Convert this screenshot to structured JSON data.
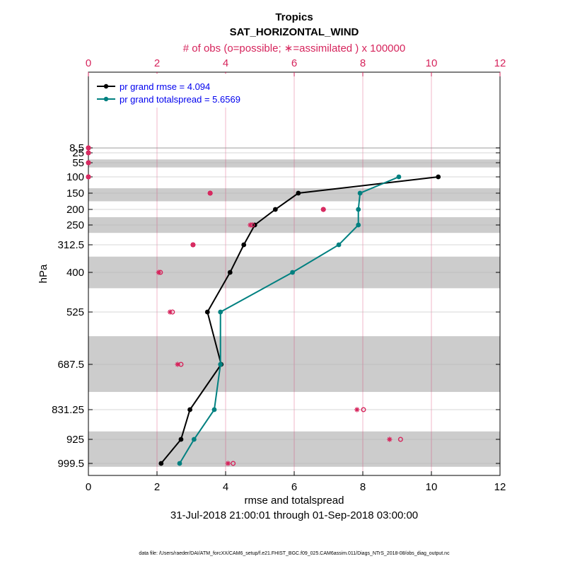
{
  "colors": {
    "rmse": "#000000",
    "spread": "#008080",
    "obs": "#d6245c",
    "band": "#cccccc",
    "grid_v": "#d6245c"
  },
  "chart_data": {
    "type": "line",
    "title": "Tropics",
    "subtitle": "SAT_HORIZONTAL_WIND",
    "top_axis_label": "# of obs (o=possible; ∗=assimilated ) x 100000",
    "xlabel": "rmse and totalspread",
    "ylabel": "hPa",
    "date_range": "31-Jul-2018 21:00:01 through 01-Sep-2018 03:00:00",
    "footnote": "data file: /Users/raeder/DAI/ATM_forcXX/CAM6_setup/f.e21.FHIST_BGC.f09_025.CAM6assim.011/Diags_NTrS_2018-08/obs_diag_output.nc",
    "xlim": [
      0,
      12
    ],
    "x_ticks": [
      "0",
      "2",
      "4",
      "6",
      "8",
      "10",
      "12"
    ],
    "top_ticks": [
      "0",
      "2",
      "4",
      "6",
      "8",
      "10",
      "12"
    ],
    "levels": [
      "8.5",
      "25",
      "55",
      "100",
      "150",
      "200",
      "250",
      "312.5",
      "400",
      "525",
      "687.5",
      "831.25",
      "925",
      "999.5"
    ],
    "level_values": [
      8.5,
      25,
      55,
      100,
      150,
      200,
      250,
      312.5,
      400,
      525,
      687.5,
      831.25,
      925,
      999.5
    ],
    "bands": [
      [
        7,
        11
      ],
      [
        45,
        70
      ],
      [
        135,
        175
      ],
      [
        225,
        275
      ],
      [
        350,
        450
      ],
      [
        600,
        775
      ],
      [
        900,
        1010
      ]
    ],
    "series": [
      {
        "name": "pr grand rmse = 4.094",
        "color_key": "rmse",
        "points": [
          [
            10.2,
            100
          ],
          [
            6.12,
            150
          ],
          [
            5.45,
            200
          ],
          [
            4.85,
            250
          ],
          [
            4.53,
            312.5
          ],
          [
            4.13,
            400
          ],
          [
            3.47,
            525
          ],
          [
            3.87,
            687.5
          ],
          [
            2.96,
            831.25
          ],
          [
            2.7,
            925
          ],
          [
            2.12,
            999.5
          ]
        ]
      },
      {
        "name": "pr grand totalspread = 5.6569",
        "color_key": "spread",
        "points": [
          [
            9.05,
            100
          ],
          [
            7.92,
            150
          ],
          [
            7.87,
            200
          ],
          [
            7.87,
            250
          ],
          [
            7.3,
            312.5
          ],
          [
            5.95,
            400
          ],
          [
            3.85,
            525
          ],
          [
            3.85,
            687.5
          ],
          [
            3.67,
            831.25
          ],
          [
            3.08,
            925
          ],
          [
            2.66,
            999.5
          ]
        ]
      }
    ],
    "obs_possible": [
      [
        0.0,
        8.5
      ],
      [
        0.0,
        25
      ],
      [
        0.0,
        55
      ],
      [
        0.0,
        100
      ],
      [
        3.55,
        150
      ],
      [
        6.85,
        200
      ],
      [
        4.78,
        250
      ],
      [
        3.05,
        312.5
      ],
      [
        2.1,
        400
      ],
      [
        2.45,
        525
      ],
      [
        2.7,
        687.5
      ],
      [
        8.02,
        831.25
      ],
      [
        9.1,
        925
      ],
      [
        4.22,
        999.5
      ]
    ],
    "obs_assimilated": [
      [
        0.0,
        8.5
      ],
      [
        0.0,
        25
      ],
      [
        0.0,
        55
      ],
      [
        0.0,
        100
      ],
      [
        3.55,
        150
      ],
      [
        6.85,
        200
      ],
      [
        4.72,
        250
      ],
      [
        3.05,
        312.5
      ],
      [
        2.05,
        400
      ],
      [
        2.38,
        525
      ],
      [
        2.6,
        687.5
      ],
      [
        7.83,
        831.25
      ],
      [
        8.78,
        925
      ],
      [
        4.07,
        999.5
      ]
    ]
  }
}
